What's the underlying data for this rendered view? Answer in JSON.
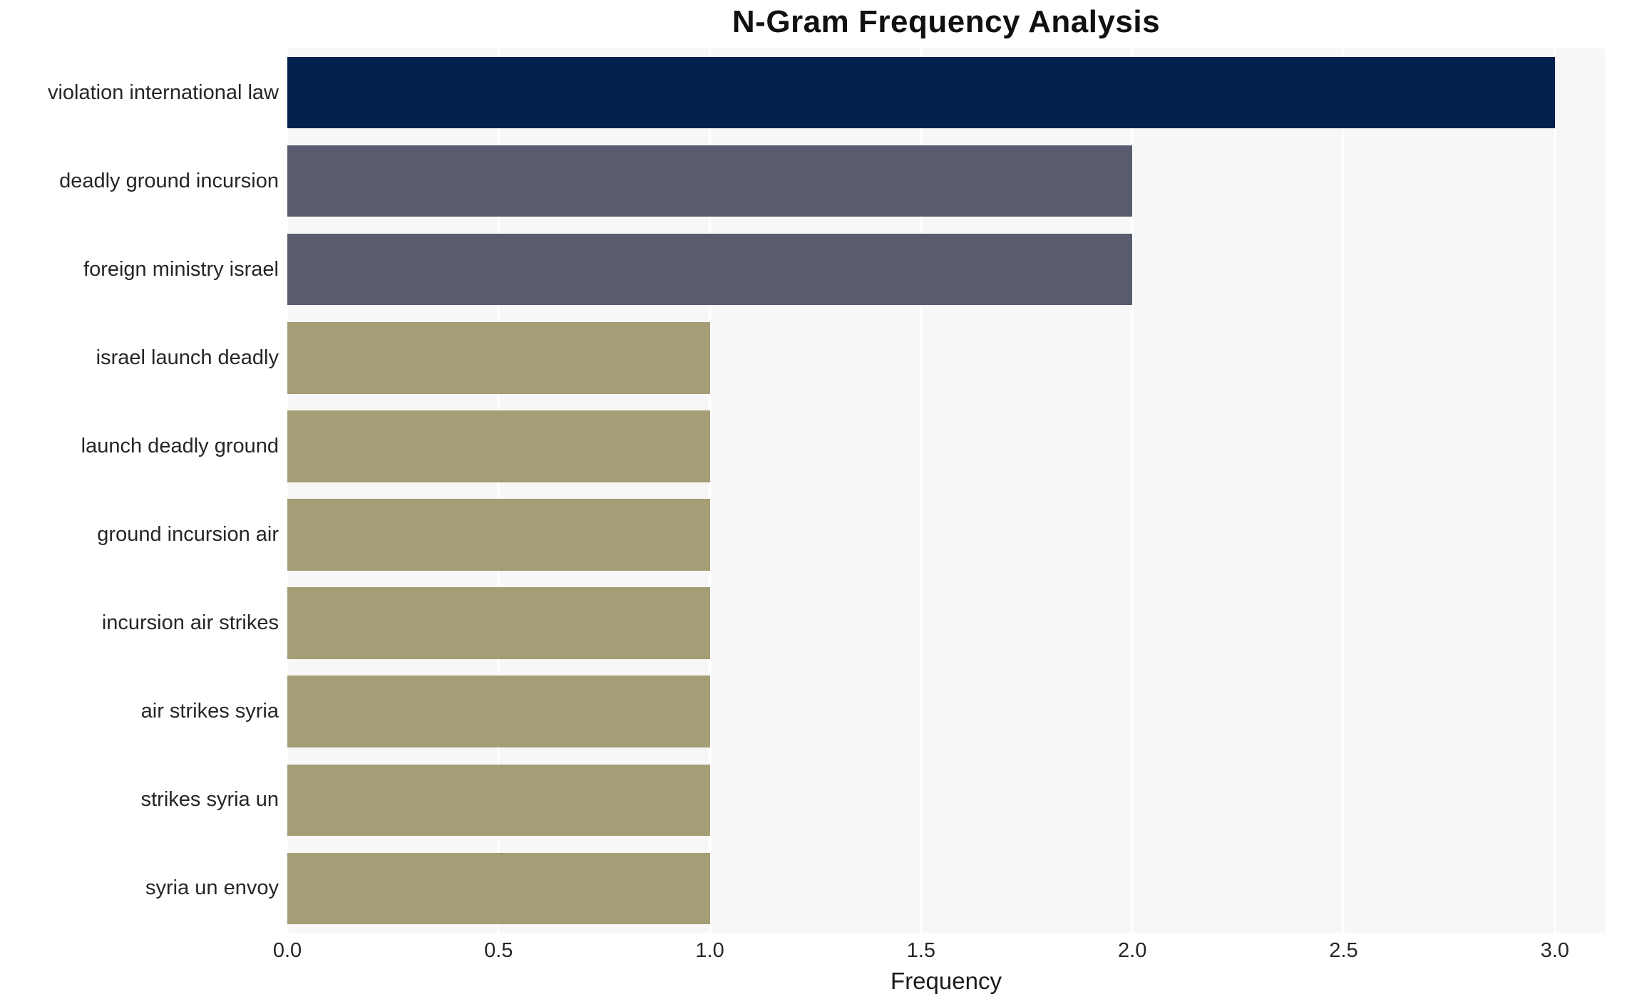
{
  "chart_data": {
    "type": "bar",
    "orientation": "horizontal",
    "title": "N-Gram Frequency Analysis",
    "xlabel": "Frequency",
    "ylabel": "",
    "xlim": [
      0,
      3.0
    ],
    "xticks": [
      0.0,
      0.5,
      1.0,
      1.5,
      2.0,
      2.5,
      3.0
    ],
    "xtick_labels": [
      "0.0",
      "0.5",
      "1.0",
      "1.5",
      "2.0",
      "2.5",
      "3.0"
    ],
    "categories": [
      "violation international law",
      "deadly ground incursion",
      "foreign ministry israel",
      "israel launch deadly",
      "launch deadly ground",
      "ground incursion air",
      "incursion air strikes",
      "air strikes syria",
      "strikes syria un",
      "syria un envoy"
    ],
    "values": [
      3,
      2,
      2,
      1,
      1,
      1,
      1,
      1,
      1,
      1
    ],
    "bar_colors": [
      "#03214d",
      "#585c6e",
      "#585c6e",
      "#a59d75",
      "#a59d75",
      "#a59d75",
      "#a59d75",
      "#a59d75",
      "#a59d75",
      "#a59d75"
    ],
    "plot_bg": "#f7f7f7",
    "grid_color": "#ffffff",
    "grid": "on",
    "legend": "none"
  }
}
